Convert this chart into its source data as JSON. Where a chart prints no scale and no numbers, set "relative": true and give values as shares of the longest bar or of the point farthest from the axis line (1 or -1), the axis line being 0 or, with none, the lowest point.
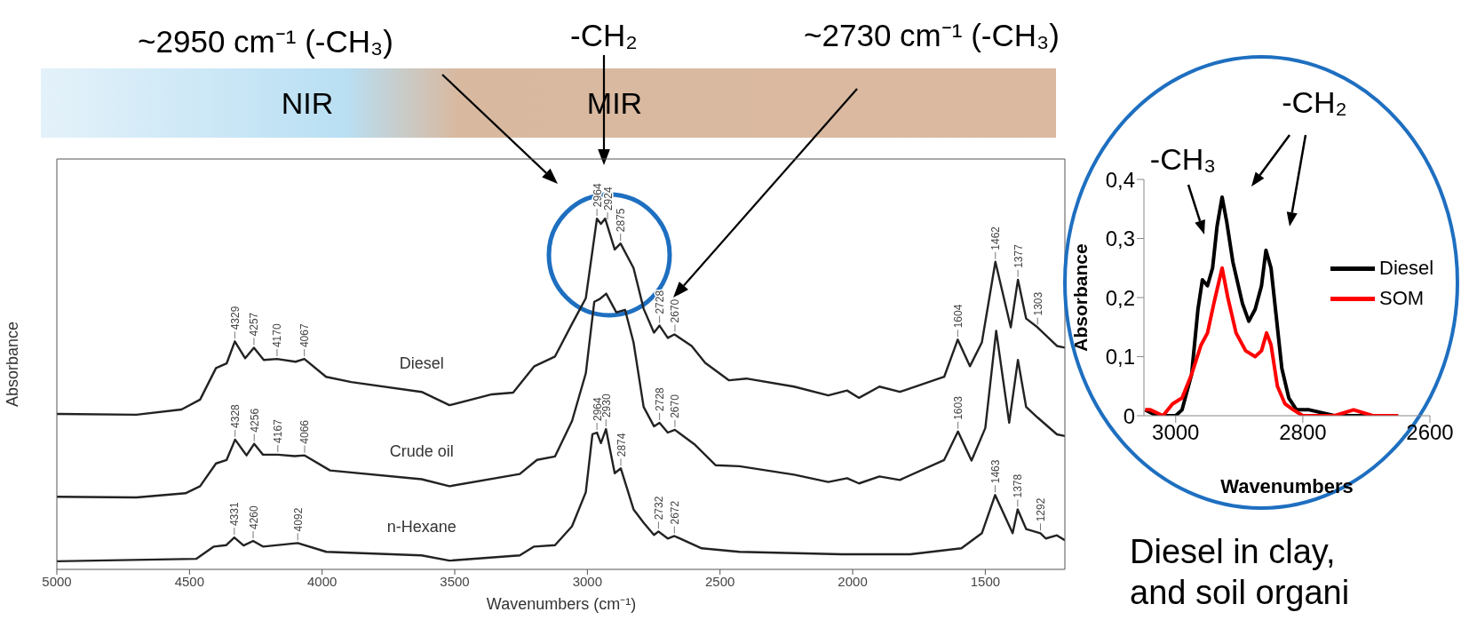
{
  "chart_data": [
    {
      "type": "line",
      "relative": true,
      "xlabel": "Wavenumbers (cm⁻¹)",
      "ylabel": "Absorbance",
      "xlim": [
        5000,
        1200
      ],
      "xticks": [
        5000,
        4500,
        4000,
        3500,
        3000,
        2500,
        2000,
        1500
      ],
      "series": [
        {
          "name": "Diesel",
          "color": "#222222",
          "x": [
            5000,
            4700,
            4530,
            4460,
            4400,
            4360,
            4329,
            4290,
            4257,
            4220,
            4170,
            4100,
            4067,
            3985,
            3890,
            3625,
            3520,
            3360,
            3280,
            3200,
            3122,
            3058,
            3006,
            2964,
            2949,
            2933,
            2897,
            2875,
            2826,
            2788,
            2749,
            2728,
            2697,
            2672,
            2607,
            2556,
            2466,
            2401,
            2221,
            2092,
            2021,
            1976,
            1899,
            1822,
            1655,
            1604,
            1558,
            1513,
            1462,
            1404,
            1377,
            1346,
            1303,
            1230,
            1200
          ],
          "values": [
            0.443,
            0.441,
            0.456,
            0.484,
            0.574,
            0.587,
            0.65,
            0.602,
            0.632,
            0.597,
            0.6,
            0.592,
            0.6,
            0.549,
            0.534,
            0.506,
            0.468,
            0.499,
            0.504,
            0.579,
            0.607,
            0.7,
            0.773,
            1,
            0.985,
            1,
            0.912,
            0.929,
            0.859,
            0.743,
            0.675,
            0.695,
            0.66,
            0.67,
            0.637,
            0.589,
            0.539,
            0.544,
            0.521,
            0.496,
            0.51,
            0.489,
            0.521,
            0.506,
            0.549,
            0.655,
            0.579,
            0.647,
            0.877,
            0.69,
            0.826,
            0.715,
            0.69,
            0.637,
            0.632
          ]
        },
        {
          "name": "Crude oil",
          "color": "#222222",
          "x": [
            5000,
            4700,
            4515,
            4460,
            4400,
            4360,
            4328,
            4285,
            4256,
            4223,
            4167,
            4103,
            4066,
            3970,
            3625,
            3520,
            3255,
            3190,
            3122,
            3058,
            3006,
            2974,
            2955,
            2929,
            2891,
            2858,
            2826,
            2788,
            2749,
            2728,
            2697,
            2670,
            2594,
            2517,
            2427,
            2221,
            2092,
            2021,
            1976,
            1899,
            1822,
            1655,
            1603,
            1552,
            1500,
            1459,
            1410,
            1377,
            1346,
            1303,
            1230,
            1200
          ],
          "values": [
            0.207,
            0.205,
            0.217,
            0.237,
            0.302,
            0.312,
            0.37,
            0.325,
            0.358,
            0.327,
            0.327,
            0.323,
            0.325,
            0.282,
            0.257,
            0.237,
            0.272,
            0.312,
            0.322,
            0.423,
            0.559,
            0.763,
            0.77,
            0.786,
            0.733,
            0.74,
            0.647,
            0.463,
            0.408,
            0.418,
            0.39,
            0.398,
            0.355,
            0.297,
            0.294,
            0.27,
            0.249,
            0.26,
            0.245,
            0.265,
            0.255,
            0.312,
            0.393,
            0.31,
            0.403,
            0.68,
            0.418,
            0.597,
            0.463,
            0.433,
            0.385,
            0.38
          ]
        },
        {
          "name": "n-Hexane",
          "color": "#222222",
          "x": [
            5000,
            4475,
            4408,
            4362,
            4331,
            4296,
            4260,
            4223,
            4092,
            3984,
            3625,
            3520,
            3255,
            3201,
            3122,
            3058,
            3006,
            2981,
            2964,
            2949,
            2930,
            2897,
            2874,
            2826,
            2788,
            2749,
            2732,
            2697,
            2672,
            2569,
            2427,
            2041,
            1783,
            1590,
            1513,
            1463,
            1397,
            1378,
            1346,
            1292,
            1272,
            1230,
            1200
          ],
          "values": [
            0.023,
            0.03,
            0.065,
            0.069,
            0.091,
            0.068,
            0.081,
            0.065,
            0.075,
            0.05,
            0.04,
            0.025,
            0.04,
            0.065,
            0.069,
            0.123,
            0.22,
            0.385,
            0.39,
            0.36,
            0.4,
            0.274,
            0.288,
            0.171,
            0.133,
            0.098,
            0.108,
            0.088,
            0.095,
            0.06,
            0.05,
            0.043,
            0.043,
            0.06,
            0.103,
            0.212,
            0.103,
            0.171,
            0.115,
            0.103,
            0.088,
            0.097,
            0.083
          ]
        }
      ],
      "annotations": [
        "~2950 cm⁻¹ (-CH₃)",
        "-CH₂",
        "~2730 cm⁻¹ (-CH₃)",
        "NIR",
        "MIR",
        {
          "text": "4329",
          "x": 4329,
          "y": 0.65
        },
        {
          "text": "4257",
          "x": 4257,
          "y": 0.632
        },
        {
          "text": "4170",
          "x": 4170,
          "y": 0.6
        },
        {
          "text": "4067",
          "x": 4067,
          "y": 0.6
        },
        {
          "text": "2964",
          "x": 2964,
          "y": 1
        },
        {
          "text": "2924",
          "x": 2924,
          "y": 0.99
        },
        {
          "text": "2875",
          "x": 2875,
          "y": 0.929
        },
        {
          "text": "2728",
          "x": 2728,
          "y": 0.695
        },
        {
          "text": "2670",
          "x": 2670,
          "y": 0.67
        },
        {
          "text": "1604",
          "x": 1604,
          "y": 0.655
        },
        {
          "text": "1462",
          "x": 1462,
          "y": 0.877
        },
        {
          "text": "1377",
          "x": 1377,
          "y": 0.826
        },
        {
          "text": "1303",
          "x": 1303,
          "y": 0.69
        },
        {
          "text": "4328",
          "x": 4328,
          "y": 0.37
        },
        {
          "text": "4256",
          "x": 4256,
          "y": 0.358
        },
        {
          "text": "4167",
          "x": 4167,
          "y": 0.327
        },
        {
          "text": "4066",
          "x": 4066,
          "y": 0.325
        },
        {
          "text": "2728",
          "x": 2728,
          "y": 0.418
        },
        {
          "text": "2670",
          "x": 2670,
          "y": 0.398
        },
        {
          "text": "1603",
          "x": 1603,
          "y": 0.393
        },
        {
          "text": "4331",
          "x": 4331,
          "y": 0.091
        },
        {
          "text": "4260",
          "x": 4260,
          "y": 0.081
        },
        {
          "text": "4092",
          "x": 4092,
          "y": 0.075
        },
        {
          "text": "2964",
          "x": 2964,
          "y": 0.39
        },
        {
          "text": "2930",
          "x": 2930,
          "y": 0.4
        },
        {
          "text": "2874",
          "x": 2874,
          "y": 0.288
        },
        {
          "text": "2732",
          "x": 2732,
          "y": 0.108
        },
        {
          "text": "2672",
          "x": 2672,
          "y": 0.095
        },
        {
          "text": "1463",
          "x": 1463,
          "y": 0.212
        },
        {
          "text": "1378",
          "x": 1378,
          "y": 0.171
        },
        {
          "text": "1292",
          "x": 1292,
          "y": 0.103
        }
      ]
    },
    {
      "type": "line",
      "xlabel": "Wavenumbers",
      "ylabel": "Absorbance",
      "xlim": [
        3050,
        2600
      ],
      "xticks": [
        3000,
        2800,
        2600
      ],
      "ylim": [
        0,
        0.4
      ],
      "yticks": [
        0,
        {
          "value": 0.1,
          "label": "0,1"
        },
        {
          "value": 0.2,
          "label": "0,2"
        },
        {
          "value": 0.3,
          "label": "0,3"
        },
        {
          "value": 0.4,
          "label": "0,4"
        }
      ],
      "legend": "right",
      "series": [
        {
          "name": "Diesel",
          "color": "#000000",
          "x": [
            3048,
            3030,
            3000,
            2990,
            2975,
            2965,
            2958,
            2950,
            2942,
            2935,
            2927,
            2920,
            2910,
            2895,
            2885,
            2875,
            2865,
            2858,
            2850,
            2842,
            2833,
            2822,
            2810,
            2790,
            2750,
            2700,
            2650
          ],
          "values": [
            0.01,
            0,
            0,
            0.01,
            0.07,
            0.18,
            0.23,
            0.22,
            0.25,
            0.32,
            0.37,
            0.33,
            0.26,
            0.19,
            0.16,
            0.18,
            0.22,
            0.28,
            0.25,
            0.17,
            0.08,
            0.03,
            0.01,
            0.01,
            0,
            0,
            0
          ]
        },
        {
          "name": "SOM",
          "color": "#ff0000",
          "x": [
            3048,
            3040,
            3020,
            3005,
            2990,
            2975,
            2960,
            2950,
            2940,
            2927,
            2918,
            2905,
            2890,
            2875,
            2865,
            2857,
            2850,
            2840,
            2828,
            2815,
            2800,
            2750,
            2720,
            2690,
            2650
          ],
          "values": [
            0.01,
            0.01,
            0,
            0.02,
            0.03,
            0.07,
            0.12,
            0.14,
            0.19,
            0.25,
            0.2,
            0.14,
            0.11,
            0.1,
            0.11,
            0.14,
            0.12,
            0.05,
            0.02,
            0.01,
            0,
            0,
            0.01,
            0,
            0
          ]
        }
      ],
      "annotations": [
        "-CH₃",
        "-CH₂",
        "Diesel in clay, and soil organi"
      ]
    }
  ]
}
